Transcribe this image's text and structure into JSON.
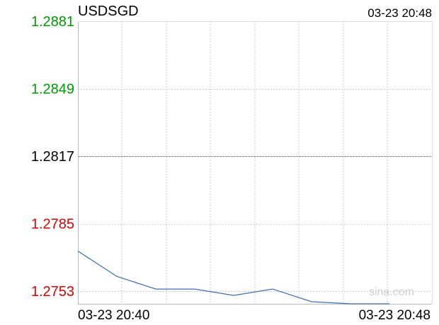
{
  "symbol": "USDSGD",
  "timestamp": "03-23 20:48",
  "watermark": "sina.com",
  "colors": {
    "up": "#009900",
    "down": "#dd0000",
    "neutral": "#000000",
    "line": "#3c6eb4",
    "grid": "#cccccc"
  },
  "chart_data": {
    "type": "line",
    "title": "USDSGD",
    "xlabel": "",
    "ylabel": "",
    "reference_value": 1.2817,
    "ylim": [
      1.2747,
      1.2881
    ],
    "y_ticks": [
      {
        "label": "1.2881",
        "value": 1.2881,
        "color": "#009900"
      },
      {
        "label": "1.2849",
        "value": 1.2849,
        "color": "#009900"
      },
      {
        "label": "1.2817",
        "value": 1.2817,
        "color": "#000000"
      },
      {
        "label": "1.2785",
        "value": 1.2785,
        "color": "#dd0000"
      },
      {
        "label": "1.2753",
        "value": 1.2753,
        "color": "#dd0000"
      }
    ],
    "x_ticks": [
      "03-23 20:40",
      "03-23 20:48"
    ],
    "x": [
      "20:40",
      "20:41",
      "20:42",
      "20:43",
      "20:44",
      "20:45",
      "20:46",
      "20:47",
      "20:48"
    ],
    "series": [
      {
        "values": [
          1.2772,
          1.276,
          1.2754,
          1.2754,
          1.2751,
          1.2754,
          1.2748,
          1.2747,
          1.2747
        ]
      }
    ],
    "grid": true
  }
}
